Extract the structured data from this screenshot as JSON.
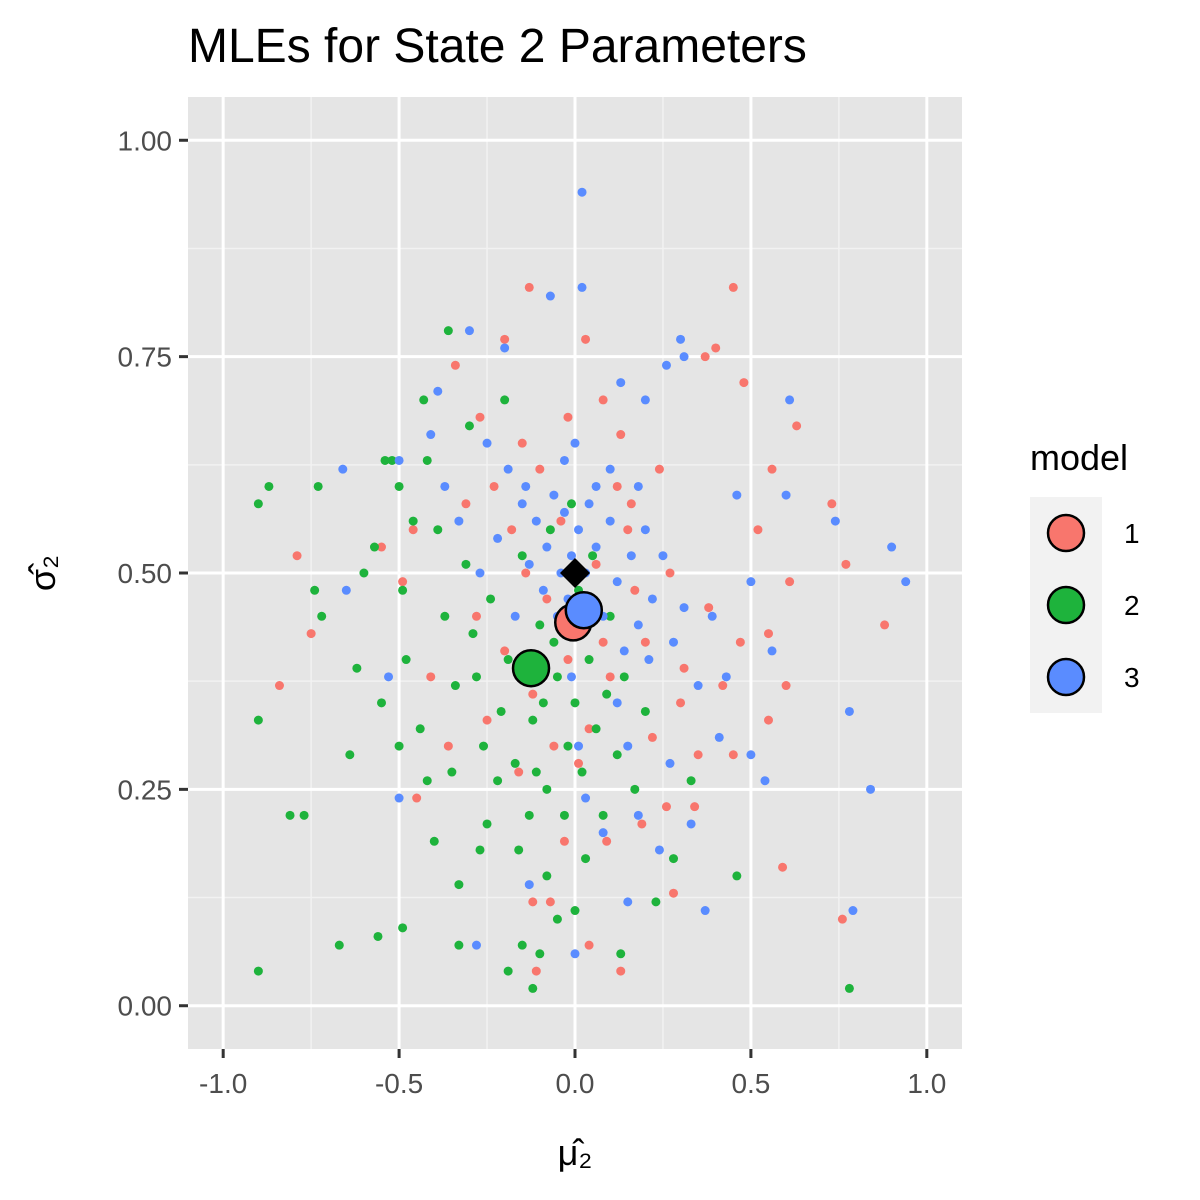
{
  "chart_data": {
    "type": "scatter",
    "title": "MLEs for State 2 Parameters",
    "xlabel": "μ̂₂",
    "ylabel": "σ̂₂",
    "xlim": [
      -1.1,
      1.1
    ],
    "ylim": [
      -0.05,
      1.05
    ],
    "x_ticks": [
      -1.0,
      -0.5,
      0.0,
      0.5,
      1.0
    ],
    "x_tick_labels": [
      "-1.0",
      "-0.5",
      "0.0",
      "0.5",
      "1.0"
    ],
    "y_ticks": [
      0.0,
      0.25,
      0.5,
      0.75,
      1.0
    ],
    "y_tick_labels": [
      "0.00",
      "0.25",
      "0.50",
      "0.75",
      "1.00"
    ],
    "grid": true,
    "background": "#e5e5e5",
    "legend": {
      "title": "model",
      "position": "right",
      "entries": [
        {
          "label": "1",
          "color": "#f8766d"
        },
        {
          "label": "2",
          "color": "#1eb33c"
        },
        {
          "label": "3",
          "color": "#5a8cff"
        }
      ]
    },
    "series": [
      {
        "name": "1",
        "color": "#f8766d",
        "points": [
          [
            -0.79,
            0.52
          ],
          [
            -0.84,
            0.37
          ],
          [
            -0.75,
            0.43
          ],
          [
            -0.55,
            0.53
          ],
          [
            -0.49,
            0.49
          ],
          [
            -0.45,
            0.24
          ],
          [
            -0.34,
            0.74
          ],
          [
            -0.27,
            0.68
          ],
          [
            -0.2,
            0.77
          ],
          [
            -0.13,
            0.83
          ],
          [
            -0.12,
            0.12
          ],
          [
            -0.11,
            0.04
          ],
          [
            -0.07,
            0.12
          ],
          [
            -0.02,
            0.68
          ],
          [
            0.03,
            0.77
          ],
          [
            0.04,
            0.07
          ],
          [
            0.13,
            0.04
          ],
          [
            0.28,
            0.13
          ],
          [
            0.37,
            0.75
          ],
          [
            0.4,
            0.76
          ],
          [
            0.45,
            0.83
          ],
          [
            0.48,
            0.72
          ],
          [
            0.52,
            0.55
          ],
          [
            0.56,
            0.62
          ],
          [
            0.61,
            0.49
          ],
          [
            0.63,
            0.67
          ],
          [
            0.73,
            0.58
          ],
          [
            0.77,
            0.51
          ],
          [
            0.76,
            0.1
          ],
          [
            0.88,
            0.44
          ],
          [
            0.59,
            0.16
          ],
          [
            0.55,
            0.33
          ],
          [
            0.55,
            0.43
          ],
          [
            0.47,
            0.42
          ],
          [
            0.42,
            0.37
          ],
          [
            0.38,
            0.46
          ],
          [
            0.35,
            0.29
          ],
          [
            0.34,
            0.23
          ],
          [
            0.3,
            0.35
          ],
          [
            0.26,
            0.23
          ],
          [
            0.22,
            0.31
          ],
          [
            0.2,
            0.42
          ],
          [
            0.17,
            0.48
          ],
          [
            0.15,
            0.55
          ],
          [
            0.12,
            0.6
          ],
          [
            0.1,
            0.38
          ],
          [
            0.08,
            0.42
          ],
          [
            0.06,
            0.51
          ],
          [
            0.04,
            0.32
          ],
          [
            0.02,
            0.45
          ],
          [
            -0.02,
            0.4
          ],
          [
            -0.04,
            0.56
          ],
          [
            -0.06,
            0.3
          ],
          [
            -0.08,
            0.47
          ],
          [
            -0.1,
            0.62
          ],
          [
            -0.12,
            0.36
          ],
          [
            -0.14,
            0.5
          ],
          [
            -0.16,
            0.27
          ],
          [
            -0.18,
            0.55
          ],
          [
            -0.2,
            0.41
          ],
          [
            -0.23,
            0.6
          ],
          [
            -0.25,
            0.33
          ],
          [
            -0.28,
            0.45
          ],
          [
            -0.31,
            0.58
          ],
          [
            -0.36,
            0.3
          ],
          [
            -0.41,
            0.38
          ],
          [
            -0.46,
            0.55
          ],
          [
            0.24,
            0.62
          ],
          [
            0.27,
            0.5
          ],
          [
            0.31,
            0.39
          ],
          [
            0.19,
            0.21
          ],
          [
            0.13,
            0.66
          ],
          [
            0.01,
            0.28
          ],
          [
            -0.03,
            0.19
          ],
          [
            0.09,
            0.19
          ],
          [
            0.16,
            0.58
          ],
          [
            -0.15,
            0.65
          ],
          [
            0.45,
            0.29
          ],
          [
            0.6,
            0.37
          ],
          [
            0.08,
            0.7
          ]
        ]
      },
      {
        "name": "2",
        "color": "#1eb33c",
        "points": [
          [
            -0.9,
            0.58
          ],
          [
            -0.87,
            0.6
          ],
          [
            -0.9,
            0.33
          ],
          [
            -0.9,
            0.04
          ],
          [
            -0.81,
            0.22
          ],
          [
            -0.77,
            0.22
          ],
          [
            -0.74,
            0.48
          ],
          [
            -0.73,
            0.6
          ],
          [
            -0.72,
            0.45
          ],
          [
            -0.67,
            0.07
          ],
          [
            -0.64,
            0.29
          ],
          [
            -0.62,
            0.39
          ],
          [
            -0.57,
            0.53
          ],
          [
            -0.56,
            0.08
          ],
          [
            -0.54,
            0.63
          ],
          [
            -0.52,
            0.63
          ],
          [
            -0.5,
            0.6
          ],
          [
            -0.49,
            0.09
          ],
          [
            -0.49,
            0.48
          ],
          [
            -0.46,
            0.56
          ],
          [
            -0.43,
            0.7
          ],
          [
            -0.42,
            0.63
          ],
          [
            -0.4,
            0.19
          ],
          [
            -0.36,
            0.78
          ],
          [
            -0.33,
            0.14
          ],
          [
            -0.33,
            0.07
          ],
          [
            -0.3,
            0.67
          ],
          [
            -0.28,
            0.38
          ],
          [
            -0.25,
            0.21
          ],
          [
            -0.2,
            0.7
          ],
          [
            -0.19,
            0.04
          ],
          [
            -0.15,
            0.07
          ],
          [
            -0.12,
            0.02
          ],
          [
            -0.1,
            0.06
          ],
          [
            -0.08,
            0.15
          ],
          [
            -0.05,
            0.1
          ],
          [
            0.0,
            0.11
          ],
          [
            0.03,
            0.17
          ],
          [
            0.13,
            0.06
          ],
          [
            0.23,
            0.12
          ],
          [
            0.28,
            0.17
          ],
          [
            0.33,
            0.26
          ],
          [
            0.46,
            0.15
          ],
          [
            0.78,
            0.02
          ],
          [
            -0.02,
            0.3
          ],
          [
            -0.05,
            0.38
          ],
          [
            -0.08,
            0.25
          ],
          [
            -0.1,
            0.44
          ],
          [
            -0.12,
            0.33
          ],
          [
            -0.15,
            0.52
          ],
          [
            -0.17,
            0.28
          ],
          [
            -0.19,
            0.4
          ],
          [
            -0.21,
            0.34
          ],
          [
            -0.24,
            0.47
          ],
          [
            -0.26,
            0.3
          ],
          [
            -0.29,
            0.43
          ],
          [
            -0.31,
            0.51
          ],
          [
            -0.34,
            0.37
          ],
          [
            -0.37,
            0.45
          ],
          [
            -0.39,
            0.55
          ],
          [
            -0.44,
            0.32
          ],
          [
            -0.48,
            0.4
          ],
          [
            -0.55,
            0.35
          ],
          [
            -0.6,
            0.5
          ],
          [
            0.0,
            0.35
          ],
          [
            0.02,
            0.27
          ],
          [
            0.04,
            0.4
          ],
          [
            0.06,
            0.32
          ],
          [
            0.08,
            0.22
          ],
          [
            0.1,
            0.45
          ],
          [
            0.12,
            0.29
          ],
          [
            0.14,
            0.38
          ],
          [
            0.17,
            0.25
          ],
          [
            0.2,
            0.34
          ],
          [
            -0.03,
            0.22
          ],
          [
            -0.06,
            0.42
          ],
          [
            -0.09,
            0.35
          ],
          [
            -0.13,
            0.22
          ],
          [
            -0.16,
            0.18
          ],
          [
            -0.22,
            0.26
          ],
          [
            -0.27,
            0.18
          ],
          [
            -0.35,
            0.27
          ],
          [
            -0.42,
            0.26
          ],
          [
            -0.5,
            0.3
          ],
          [
            0.01,
            0.48
          ],
          [
            0.05,
            0.52
          ],
          [
            -0.01,
            0.58
          ],
          [
            -0.07,
            0.55
          ],
          [
            0.09,
            0.36
          ],
          [
            -0.11,
            0.27
          ]
        ]
      },
      {
        "name": "3",
        "color": "#5a8cff",
        "points": [
          [
            0.02,
            0.94
          ],
          [
            0.02,
            0.83
          ],
          [
            -0.07,
            0.82
          ],
          [
            -0.3,
            0.78
          ],
          [
            -0.2,
            0.76
          ],
          [
            -0.13,
            0.14
          ],
          [
            -0.28,
            0.07
          ],
          [
            -0.5,
            0.24
          ],
          [
            -0.5,
            0.63
          ],
          [
            -0.53,
            0.38
          ],
          [
            -0.66,
            0.62
          ],
          [
            -0.65,
            0.48
          ],
          [
            -0.39,
            0.71
          ],
          [
            -0.41,
            0.66
          ],
          [
            -0.37,
            0.6
          ],
          [
            0.13,
            0.72
          ],
          [
            0.2,
            0.7
          ],
          [
            0.26,
            0.74
          ],
          [
            0.3,
            0.77
          ],
          [
            0.31,
            0.75
          ],
          [
            0.61,
            0.7
          ],
          [
            0.6,
            0.59
          ],
          [
            0.74,
            0.56
          ],
          [
            0.9,
            0.53
          ],
          [
            0.94,
            0.49
          ],
          [
            0.5,
            0.49
          ],
          [
            0.56,
            0.41
          ],
          [
            0.78,
            0.34
          ],
          [
            0.84,
            0.25
          ],
          [
            0.79,
            0.11
          ],
          [
            0.54,
            0.26
          ],
          [
            0.5,
            0.29
          ],
          [
            0.41,
            0.31
          ],
          [
            0.37,
            0.11
          ],
          [
            0.15,
            0.12
          ],
          [
            0.0,
            0.06
          ],
          [
            0.46,
            0.59
          ],
          [
            0.39,
            0.45
          ],
          [
            0.43,
            0.38
          ],
          [
            0.35,
            0.37
          ],
          [
            0.31,
            0.46
          ],
          [
            0.28,
            0.42
          ],
          [
            0.25,
            0.52
          ],
          [
            0.22,
            0.47
          ],
          [
            0.2,
            0.55
          ],
          [
            0.18,
            0.44
          ],
          [
            0.16,
            0.52
          ],
          [
            0.14,
            0.41
          ],
          [
            0.12,
            0.49
          ],
          [
            0.1,
            0.56
          ],
          [
            0.08,
            0.45
          ],
          [
            0.06,
            0.53
          ],
          [
            0.05,
            0.47
          ],
          [
            0.04,
            0.58
          ],
          [
            0.03,
            0.5
          ],
          [
            0.01,
            0.55
          ],
          [
            -0.01,
            0.52
          ],
          [
            -0.02,
            0.47
          ],
          [
            -0.03,
            0.57
          ],
          [
            -0.04,
            0.5
          ],
          [
            -0.05,
            0.45
          ],
          [
            -0.06,
            0.59
          ],
          [
            -0.08,
            0.53
          ],
          [
            -0.09,
            0.48
          ],
          [
            -0.11,
            0.56
          ],
          [
            -0.13,
            0.51
          ],
          [
            -0.15,
            0.58
          ],
          [
            -0.17,
            0.45
          ],
          [
            -0.19,
            0.62
          ],
          [
            -0.22,
            0.54
          ],
          [
            -0.25,
            0.65
          ],
          [
            -0.27,
            0.5
          ],
          [
            -0.33,
            0.56
          ],
          [
            0.12,
            0.35
          ],
          [
            0.15,
            0.3
          ],
          [
            0.18,
            0.22
          ],
          [
            0.08,
            0.2
          ],
          [
            0.01,
            0.3
          ],
          [
            -0.01,
            0.38
          ],
          [
            0.03,
            0.24
          ],
          [
            0.27,
            0.28
          ],
          [
            0.33,
            0.21
          ],
          [
            0.24,
            0.18
          ],
          [
            0.06,
            0.6
          ],
          [
            0.18,
            0.6
          ],
          [
            0.1,
            0.62
          ],
          [
            -0.03,
            0.63
          ],
          [
            -0.14,
            0.6
          ],
          [
            0.0,
            0.65
          ],
          [
            0.21,
            0.4
          ]
        ]
      }
    ],
    "summary_points": [
      {
        "series": "1",
        "x": -0.005,
        "y": 0.443,
        "color": "#f8766d"
      },
      {
        "series": "2",
        "x": -0.125,
        "y": 0.39,
        "color": "#1eb33c"
      },
      {
        "series": "3",
        "x": 0.025,
        "y": 0.457,
        "color": "#5a8cff"
      }
    ],
    "true_value": {
      "x": 0.0,
      "y": 0.5,
      "shape": "diamond",
      "color": "#000000"
    }
  }
}
